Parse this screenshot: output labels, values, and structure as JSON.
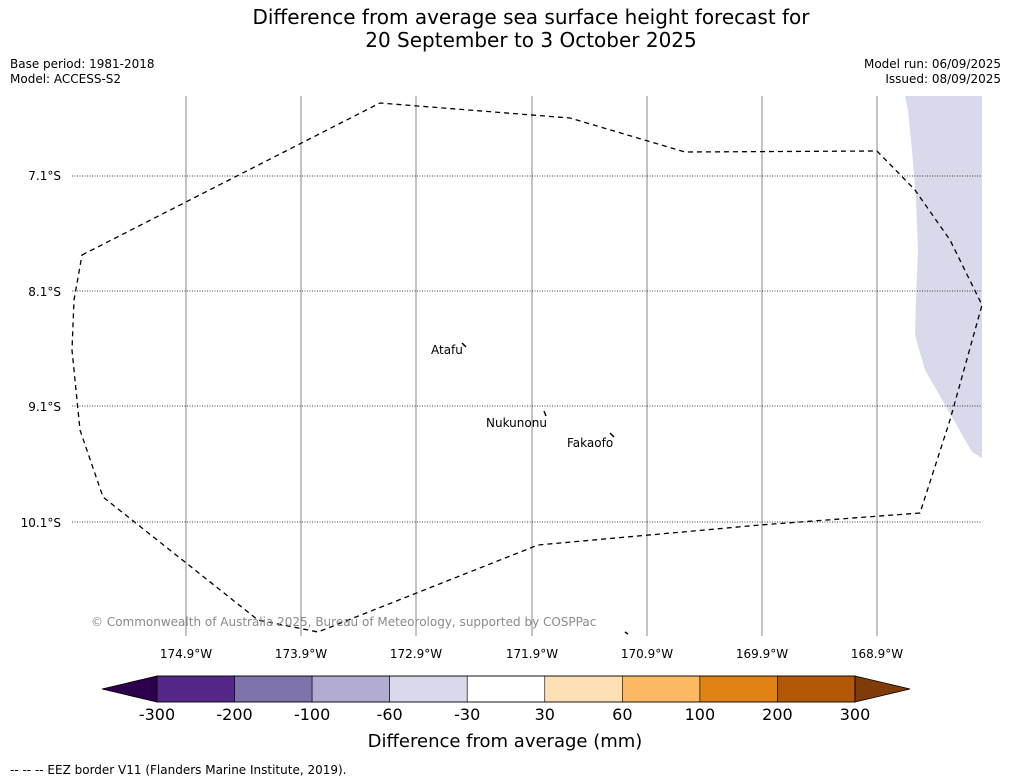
{
  "title": {
    "line1": "Difference from average sea surface height forecast for",
    "line2": "20 September to 3 October 2025"
  },
  "meta": {
    "base_period": "Base period: 1981-2018",
    "model": "Model: ACCESS-S2",
    "model_run": "Model run: 06/09/2025",
    "issued": "Issued: 08/09/2025"
  },
  "map": {
    "lat_labels": [
      "7.1°S",
      "8.1°S",
      "9.1°S",
      "10.1°S"
    ],
    "lon_labels": [
      "174.9°W",
      "173.9°W",
      "172.9°W",
      "171.9°W",
      "170.9°W",
      "169.9°W",
      "168.9°W"
    ],
    "places": [
      "Atafu",
      "Nukunonu",
      "Fakaofo"
    ],
    "copyright": "© Commonwealth of Australia 2025, Bureau of Meteorology, supported by COSPPac",
    "shaded_category": "-60 to -30",
    "shaded_color": "#d8d9eb"
  },
  "colorbar": {
    "label": "Difference from average (mm)",
    "ticks": [
      "-300",
      "-200",
      "-100",
      "-60",
      "-30",
      "30",
      "60",
      "100",
      "200",
      "300"
    ],
    "colors": [
      "#2d004b",
      "#542788",
      "#8073ac",
      "#b2abd2",
      "#d8daeb",
      "#ffffff",
      "#fee0b6",
      "#fdb863",
      "#e08214",
      "#b35806",
      "#7f3b08"
    ]
  },
  "legend": {
    "eez": "--  --  -- EEZ border V11 (Flanders Marine Institute, 2019)."
  }
}
